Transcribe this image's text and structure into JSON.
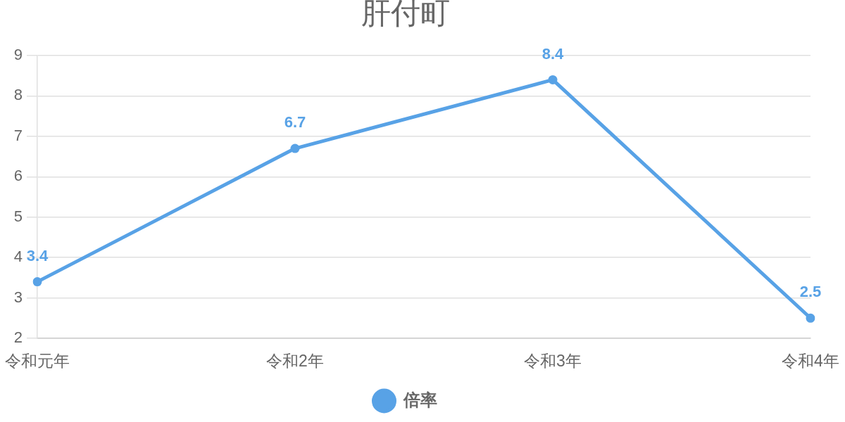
{
  "chart_data": {
    "type": "line",
    "title": "肝付町",
    "categories": [
      "令和元年",
      "令和2年",
      "令和3年",
      "令和4年"
    ],
    "series": [
      {
        "name": "倍率",
        "color": "#58a2e6",
        "values": [
          3.4,
          6.7,
          8.4,
          2.5
        ]
      }
    ],
    "ylim": [
      2,
      9
    ],
    "yticks": [
      2,
      3,
      4,
      5,
      6,
      7,
      8,
      9
    ],
    "grid": "y",
    "legend": "bottom",
    "marker": "circle",
    "line_style": "solid",
    "data_labels": true
  }
}
